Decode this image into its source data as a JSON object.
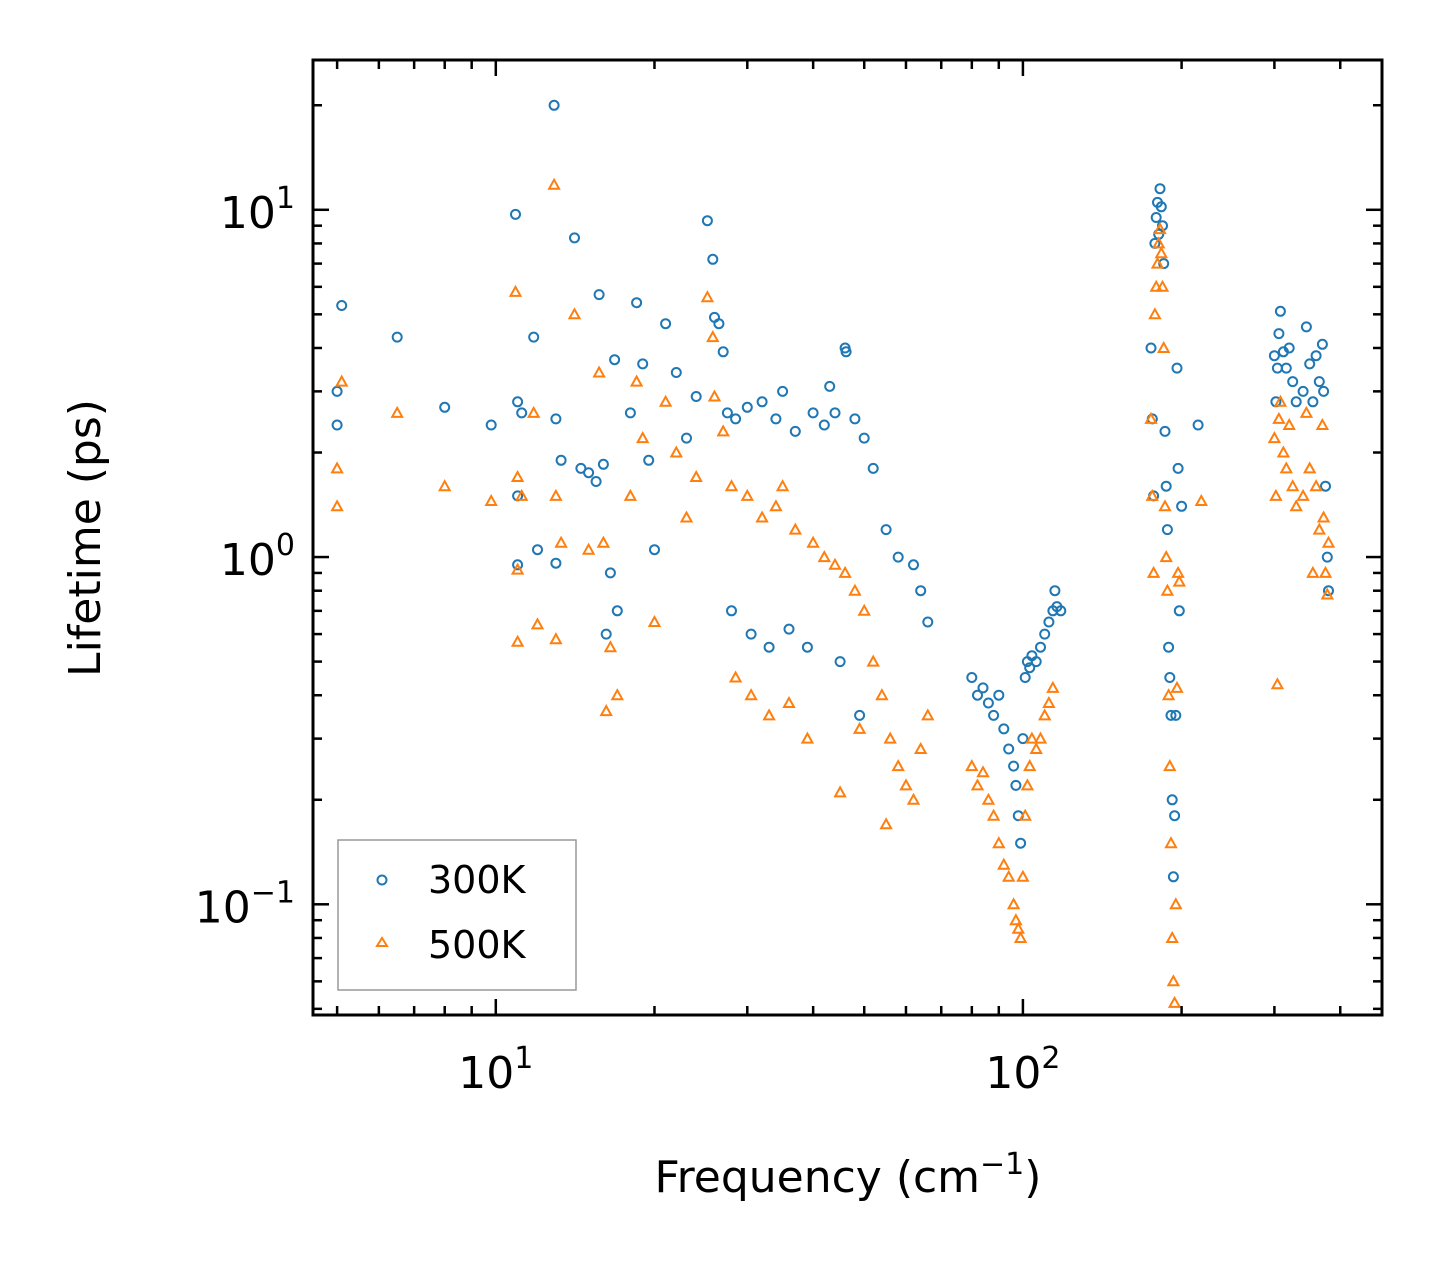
{
  "chart_data": {
    "type": "scatter",
    "title": "",
    "xlabel": "Frequency (cm",
    "xlabel_sup": "−1",
    "xlabel_end": ")",
    "ylabel": "Lifetime (ps)",
    "xscale": "log",
    "yscale": "log",
    "xlim": [
      4.5,
      480
    ],
    "ylim": [
      0.048,
      27
    ],
    "x_ticks": [
      {
        "base": "10",
        "exp": "1",
        "value": 10
      },
      {
        "base": "10",
        "exp": "2",
        "value": 100
      }
    ],
    "y_ticks": [
      {
        "base": "10",
        "exp": "1",
        "value": 10
      },
      {
        "base": "10",
        "exp": "0",
        "value": 1
      },
      {
        "base": "10",
        "exp": "−1",
        "value": 0.1
      }
    ],
    "legend_position": "bottom-left",
    "series": [
      {
        "name": "300K",
        "marker": "circle",
        "color": "#1f77b4",
        "points": [
          [
            5.0,
            3.0
          ],
          [
            5.0,
            2.4
          ],
          [
            5.1,
            5.3
          ],
          [
            6.5,
            4.3
          ],
          [
            8.0,
            2.7
          ],
          [
            9.8,
            2.4
          ],
          [
            10.9,
            9.7
          ],
          [
            11.0,
            2.8
          ],
          [
            11.0,
            1.5
          ],
          [
            11.0,
            0.95
          ],
          [
            11.2,
            2.6
          ],
          [
            11.8,
            4.3
          ],
          [
            12.0,
            1.05
          ],
          [
            12.9,
            20.0
          ],
          [
            13.0,
            2.5
          ],
          [
            13.0,
            0.96
          ],
          [
            13.3,
            1.9
          ],
          [
            14.1,
            8.3
          ],
          [
            14.5,
            1.8
          ],
          [
            15.0,
            1.75
          ],
          [
            15.5,
            1.65
          ],
          [
            15.7,
            5.7
          ],
          [
            16.0,
            1.85
          ],
          [
            16.2,
            0.6
          ],
          [
            16.5,
            0.9
          ],
          [
            16.8,
            3.7
          ],
          [
            17.0,
            0.7
          ],
          [
            18.0,
            2.6
          ],
          [
            18.5,
            5.4
          ],
          [
            19.0,
            3.6
          ],
          [
            19.5,
            1.9
          ],
          [
            20.0,
            1.05
          ],
          [
            21.0,
            4.7
          ],
          [
            22.0,
            3.4
          ],
          [
            23.0,
            2.2
          ],
          [
            24.0,
            2.9
          ],
          [
            25.2,
            9.3
          ],
          [
            25.8,
            7.2
          ],
          [
            26.0,
            4.9
          ],
          [
            26.5,
            4.7
          ],
          [
            27.0,
            3.9
          ],
          [
            27.5,
            2.6
          ],
          [
            28.5,
            2.5
          ],
          [
            30.0,
            2.7
          ],
          [
            32.0,
            2.8
          ],
          [
            34.0,
            2.5
          ],
          [
            35.0,
            3.0
          ],
          [
            37.0,
            2.3
          ],
          [
            40.0,
            2.6
          ],
          [
            42.0,
            2.4
          ],
          [
            43.0,
            3.1
          ],
          [
            44.0,
            2.6
          ],
          [
            46.0,
            4.0
          ],
          [
            46.2,
            3.9
          ],
          [
            48.0,
            2.5
          ],
          [
            50.0,
            2.2
          ],
          [
            52.0,
            1.8
          ],
          [
            55.0,
            1.2
          ],
          [
            58.0,
            1.0
          ],
          [
            62.0,
            0.95
          ],
          [
            64.0,
            0.8
          ],
          [
            66.0,
            0.65
          ],
          [
            28.0,
            0.7
          ],
          [
            30.5,
            0.6
          ],
          [
            33.0,
            0.55
          ],
          [
            36.0,
            0.62
          ],
          [
            39.0,
            0.55
          ],
          [
            45.0,
            0.5
          ],
          [
            49.0,
            0.35
          ],
          [
            80.0,
            0.45
          ],
          [
            82.0,
            0.4
          ],
          [
            84.0,
            0.42
          ],
          [
            86.0,
            0.38
          ],
          [
            88.0,
            0.35
          ],
          [
            90.0,
            0.4
          ],
          [
            92.0,
            0.32
          ],
          [
            94.0,
            0.28
          ],
          [
            96.0,
            0.25
          ],
          [
            97.0,
            0.22
          ],
          [
            98.0,
            0.18
          ],
          [
            99.0,
            0.15
          ],
          [
            100.0,
            0.3
          ],
          [
            101.0,
            0.45
          ],
          [
            102.0,
            0.5
          ],
          [
            103.0,
            0.48
          ],
          [
            104.0,
            0.52
          ],
          [
            106.0,
            0.5
          ],
          [
            108.0,
            0.55
          ],
          [
            110.0,
            0.6
          ],
          [
            112.0,
            0.65
          ],
          [
            114.0,
            0.7
          ],
          [
            115.0,
            0.8
          ],
          [
            116.0,
            0.72
          ],
          [
            118.0,
            0.7
          ],
          [
            175.0,
            4.0
          ],
          [
            176.0,
            2.5
          ],
          [
            177.0,
            1.5
          ],
          [
            178.0,
            8.0
          ],
          [
            179.0,
            9.5
          ],
          [
            180.0,
            10.5
          ],
          [
            181.0,
            8.5
          ],
          [
            182.0,
            11.5
          ],
          [
            183.0,
            10.2
          ],
          [
            184.0,
            9.0
          ],
          [
            185.0,
            7.0
          ],
          [
            186.0,
            2.3
          ],
          [
            187.0,
            1.6
          ],
          [
            188.0,
            1.2
          ],
          [
            189.0,
            0.55
          ],
          [
            190.0,
            0.45
          ],
          [
            191.0,
            0.35
          ],
          [
            192.0,
            0.2
          ],
          [
            193.0,
            0.12
          ],
          [
            194.0,
            0.18
          ],
          [
            195.0,
            0.35
          ],
          [
            196.0,
            3.5
          ],
          [
            197.0,
            1.8
          ],
          [
            198.0,
            0.7
          ],
          [
            200.0,
            1.4
          ],
          [
            215.0,
            2.4
          ],
          [
            300.0,
            3.8
          ],
          [
            302.0,
            2.8
          ],
          [
            304.0,
            3.5
          ],
          [
            306.0,
            4.4
          ],
          [
            308.0,
            5.1
          ],
          [
            312.0,
            3.9
          ],
          [
            316.0,
            3.5
          ],
          [
            320.0,
            4.0
          ],
          [
            325.0,
            3.2
          ],
          [
            330.0,
            2.8
          ],
          [
            340.0,
            3.0
          ],
          [
            345.0,
            4.6
          ],
          [
            350.0,
            3.6
          ],
          [
            355.0,
            2.8
          ],
          [
            360.0,
            3.8
          ],
          [
            365.0,
            3.2
          ],
          [
            370.0,
            4.1
          ],
          [
            372.0,
            3.0
          ],
          [
            375.0,
            1.6
          ],
          [
            378.0,
            1.0
          ],
          [
            380.0,
            0.8
          ]
        ]
      },
      {
        "name": "500K",
        "marker": "triangle",
        "color": "#ff7f0e",
        "points": [
          [
            5.0,
            1.8
          ],
          [
            5.0,
            1.4
          ],
          [
            5.1,
            3.2
          ],
          [
            6.5,
            2.6
          ],
          [
            8.0,
            1.6
          ],
          [
            9.8,
            1.45
          ],
          [
            10.9,
            5.8
          ],
          [
            11.0,
            1.7
          ],
          [
            11.0,
            0.92
          ],
          [
            11.0,
            0.57
          ],
          [
            11.2,
            1.5
          ],
          [
            11.8,
            2.6
          ],
          [
            12.0,
            0.64
          ],
          [
            12.9,
            11.8
          ],
          [
            13.0,
            1.5
          ],
          [
            13.0,
            0.58
          ],
          [
            13.3,
            1.1
          ],
          [
            14.1,
            5.0
          ],
          [
            15.0,
            1.05
          ],
          [
            15.7,
            3.4
          ],
          [
            16.0,
            1.1
          ],
          [
            16.2,
            0.36
          ],
          [
            16.5,
            0.55
          ],
          [
            17.0,
            0.4
          ],
          [
            18.0,
            1.5
          ],
          [
            18.5,
            3.2
          ],
          [
            19.0,
            2.2
          ],
          [
            20.0,
            0.65
          ],
          [
            21.0,
            2.8
          ],
          [
            22.0,
            2.0
          ],
          [
            23.0,
            1.3
          ],
          [
            24.0,
            1.7
          ],
          [
            25.2,
            5.6
          ],
          [
            25.8,
            4.3
          ],
          [
            26.0,
            2.9
          ],
          [
            27.0,
            2.3
          ],
          [
            28.0,
            1.6
          ],
          [
            30.0,
            1.5
          ],
          [
            32.0,
            1.3
          ],
          [
            34.0,
            1.4
          ],
          [
            35.0,
            1.6
          ],
          [
            37.0,
            1.2
          ],
          [
            40.0,
            1.1
          ],
          [
            42.0,
            1.0
          ],
          [
            44.0,
            0.95
          ],
          [
            46.0,
            0.9
          ],
          [
            48.0,
            0.8
          ],
          [
            50.0,
            0.7
          ],
          [
            52.0,
            0.5
          ],
          [
            54.0,
            0.4
          ],
          [
            56.0,
            0.3
          ],
          [
            58.0,
            0.25
          ],
          [
            60.0,
            0.22
          ],
          [
            62.0,
            0.2
          ],
          [
            64.0,
            0.28
          ],
          [
            66.0,
            0.35
          ],
          [
            28.5,
            0.45
          ],
          [
            30.5,
            0.4
          ],
          [
            33.0,
            0.35
          ],
          [
            36.0,
            0.38
          ],
          [
            39.0,
            0.3
          ],
          [
            45.0,
            0.21
          ],
          [
            49.0,
            0.32
          ],
          [
            55.0,
            0.17
          ],
          [
            80.0,
            0.25
          ],
          [
            82.0,
            0.22
          ],
          [
            84.0,
            0.24
          ],
          [
            86.0,
            0.2
          ],
          [
            88.0,
            0.18
          ],
          [
            90.0,
            0.15
          ],
          [
            92.0,
            0.13
          ],
          [
            94.0,
            0.12
          ],
          [
            96.0,
            0.1
          ],
          [
            97.0,
            0.09
          ],
          [
            98.0,
            0.085
          ],
          [
            99.0,
            0.08
          ],
          [
            100.0,
            0.12
          ],
          [
            101.0,
            0.18
          ],
          [
            102.0,
            0.22
          ],
          [
            103.0,
            0.25
          ],
          [
            104.0,
            0.3
          ],
          [
            106.0,
            0.28
          ],
          [
            108.0,
            0.3
          ],
          [
            110.0,
            0.35
          ],
          [
            112.0,
            0.38
          ],
          [
            114.0,
            0.42
          ],
          [
            175.0,
            2.5
          ],
          [
            176.0,
            1.5
          ],
          [
            177.0,
            0.9
          ],
          [
            178.0,
            5.0
          ],
          [
            179.0,
            6.0
          ],
          [
            180.0,
            7.0
          ],
          [
            181.0,
            8.0
          ],
          [
            182.0,
            8.8
          ],
          [
            183.0,
            7.5
          ],
          [
            184.0,
            6.0
          ],
          [
            185.0,
            4.0
          ],
          [
            186.0,
            1.4
          ],
          [
            187.0,
            1.0
          ],
          [
            188.0,
            0.8
          ],
          [
            189.0,
            0.4
          ],
          [
            190.0,
            0.25
          ],
          [
            191.0,
            0.15
          ],
          [
            192.0,
            0.08
          ],
          [
            193.0,
            0.06
          ],
          [
            194.0,
            0.052
          ],
          [
            195.0,
            0.1
          ],
          [
            196.0,
            0.42
          ],
          [
            197.0,
            0.9
          ],
          [
            198.0,
            0.85
          ],
          [
            218.0,
            1.45
          ],
          [
            300.0,
            2.2
          ],
          [
            302.0,
            1.5
          ],
          [
            304.0,
            0.43
          ],
          [
            306.0,
            2.5
          ],
          [
            308.0,
            2.8
          ],
          [
            312.0,
            2.0
          ],
          [
            316.0,
            1.8
          ],
          [
            320.0,
            2.4
          ],
          [
            325.0,
            1.6
          ],
          [
            330.0,
            1.4
          ],
          [
            340.0,
            1.5
          ],
          [
            345.0,
            2.6
          ],
          [
            350.0,
            1.8
          ],
          [
            355.0,
            0.9
          ],
          [
            360.0,
            1.6
          ],
          [
            365.0,
            1.2
          ],
          [
            370.0,
            2.4
          ],
          [
            372.0,
            1.3
          ],
          [
            375.0,
            0.9
          ],
          [
            378.0,
            0.78
          ],
          [
            380.0,
            1.1
          ]
        ]
      }
    ]
  }
}
